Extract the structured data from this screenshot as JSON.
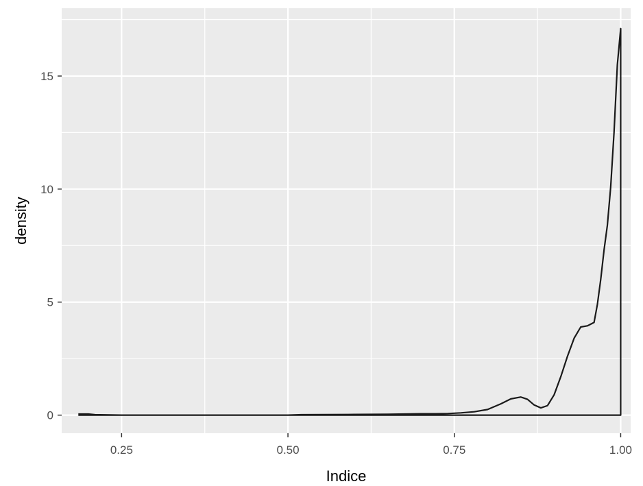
{
  "chart_data": {
    "type": "line",
    "xlabel": "Indice",
    "ylabel": "density",
    "xlim": [
      0.16,
      1.015
    ],
    "ylim": [
      -0.8,
      18.0
    ],
    "x_ticks": [
      {
        "value": 0.25,
        "label": "0.25"
      },
      {
        "value": 0.5,
        "label": "0.50"
      },
      {
        "value": 0.75,
        "label": "0.75"
      },
      {
        "value": 1.0,
        "label": "1.00"
      }
    ],
    "y_ticks": [
      {
        "value": 0,
        "label": "0"
      },
      {
        "value": 5,
        "label": "5"
      },
      {
        "value": 10,
        "label": "10"
      },
      {
        "value": 15,
        "label": "15"
      }
    ],
    "grid": true,
    "colors": {
      "panel": "#ebebeb",
      "grid_major": "#ffffff",
      "line": "#1a1a1a"
    },
    "series": [
      {
        "x": [
          0.185,
          0.2,
          0.21,
          0.25,
          0.3,
          0.4,
          0.5,
          0.52,
          0.6,
          0.65,
          0.7,
          0.72,
          0.74,
          0.76,
          0.78,
          0.8,
          0.82,
          0.835,
          0.85,
          0.86,
          0.87,
          0.88,
          0.89,
          0.9,
          0.91,
          0.92,
          0.93,
          0.94,
          0.95,
          0.96,
          0.965,
          0.97,
          0.975,
          0.98,
          0.985,
          0.99,
          0.995,
          1.0,
          1.0,
          0.185
        ],
        "y": [
          0.05,
          0.05,
          0.02,
          0.0,
          0.0,
          0.0,
          0.0,
          0.02,
          0.03,
          0.04,
          0.06,
          0.06,
          0.07,
          0.1,
          0.15,
          0.25,
          0.5,
          0.72,
          0.8,
          0.7,
          0.45,
          0.32,
          0.42,
          0.9,
          1.7,
          2.6,
          3.4,
          3.9,
          3.95,
          4.1,
          4.9,
          6.0,
          7.3,
          8.4,
          10.1,
          12.5,
          15.5,
          17.1,
          0.0,
          0.0
        ]
      }
    ]
  }
}
